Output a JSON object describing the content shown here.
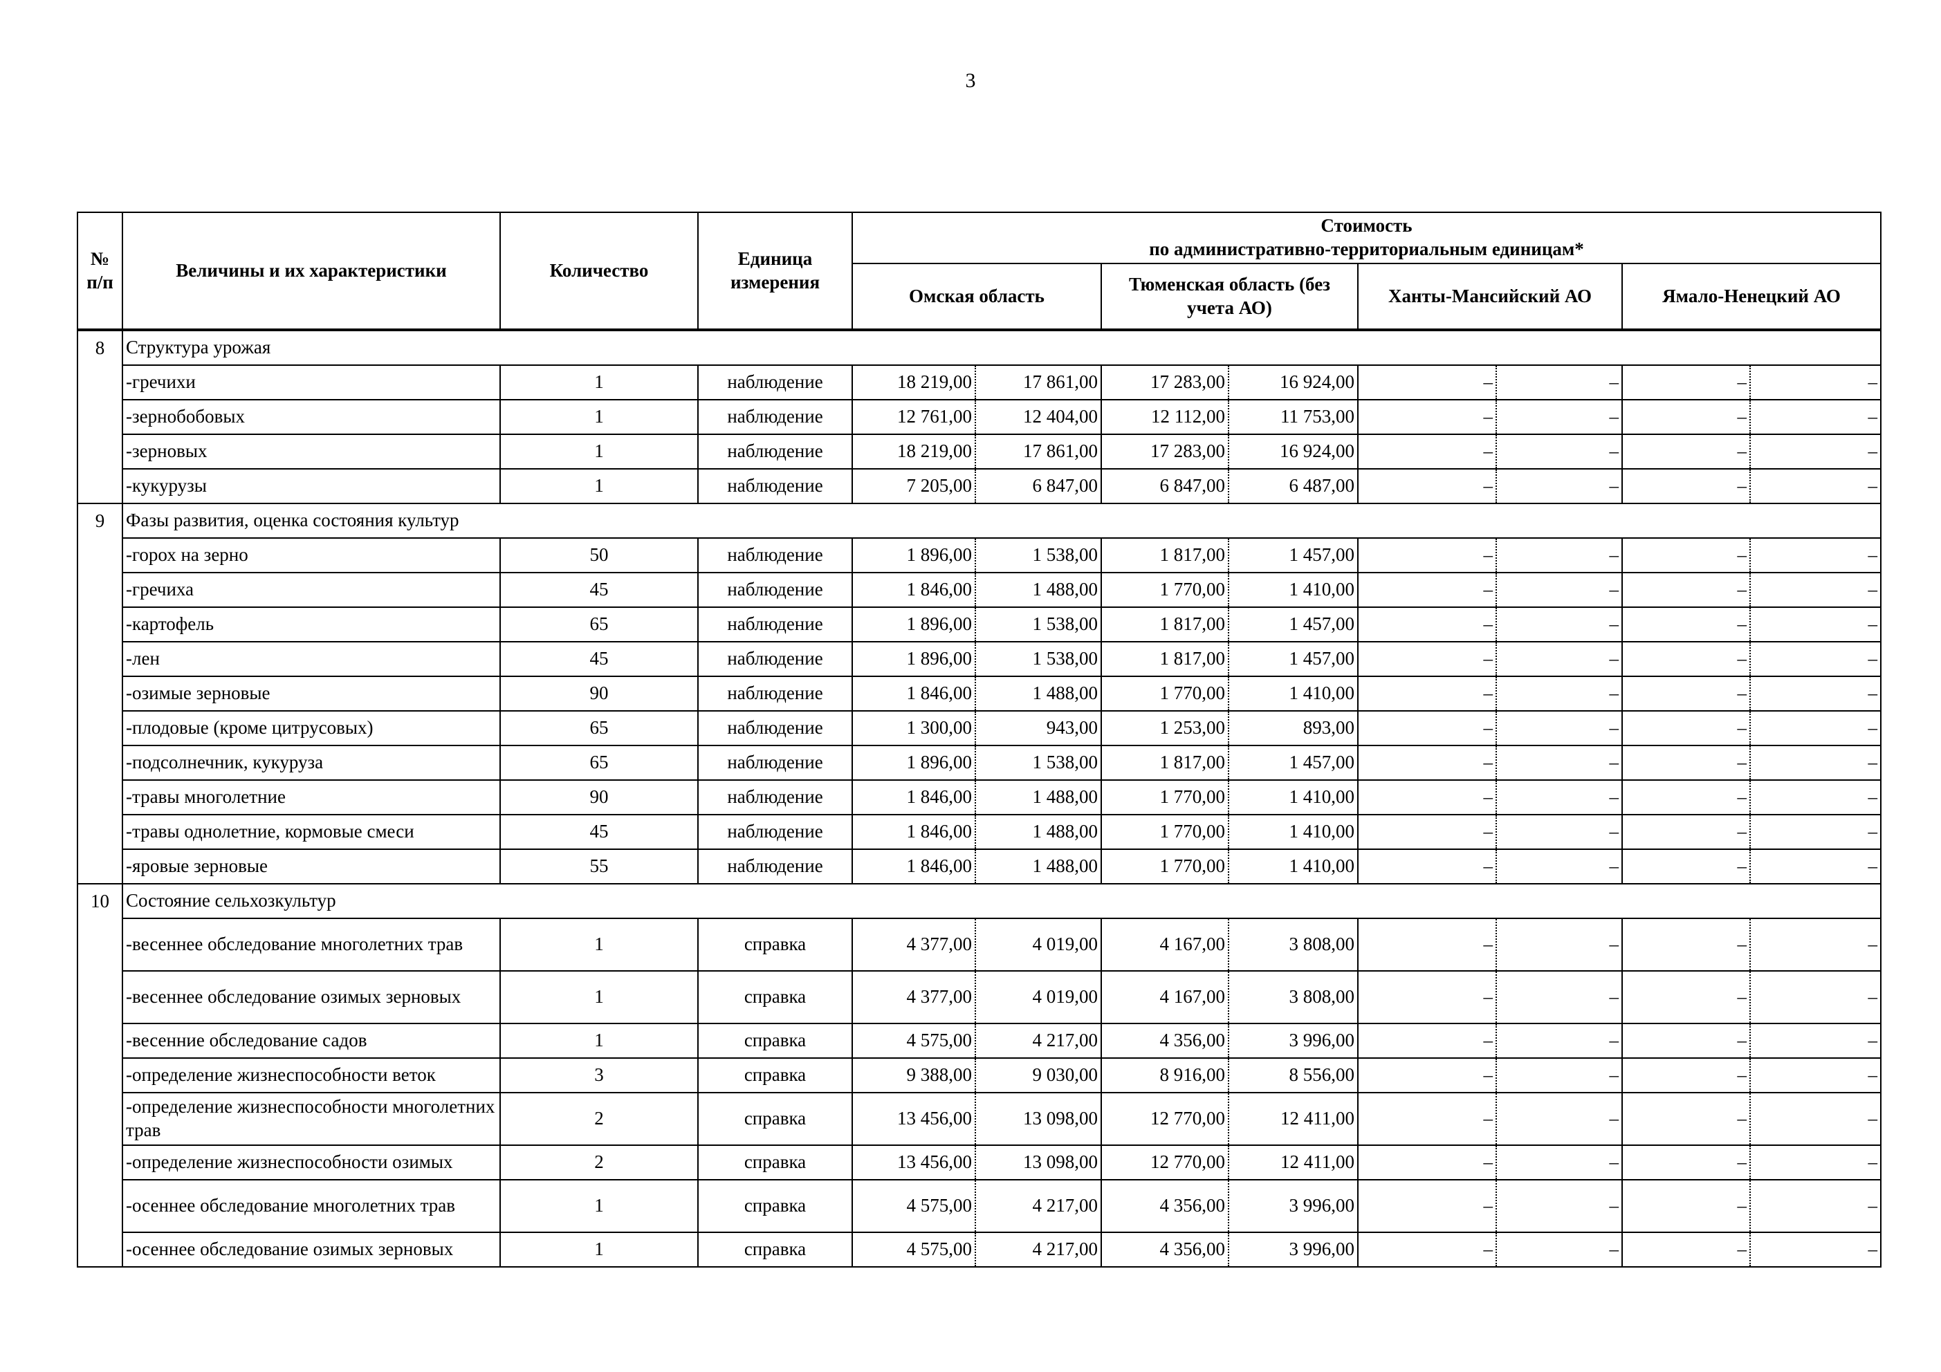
{
  "page_number": "3",
  "header": {
    "num": "№ п/п",
    "name": "Величины и их характеристики",
    "qty": "Количество",
    "unit": "Единица измерения",
    "cost": "Стоимость",
    "cost_sub": "по  административно-территориальным единицам*",
    "regions": [
      "Омская область",
      "Тюменская область (без учета АО)",
      "Ханты-Мансийский АО",
      "Ямало-Ненецкий АО"
    ]
  },
  "sections": [
    {
      "num": "8",
      "title": "Структура урожая",
      "rows": [
        {
          "name": "-гречихи",
          "qty": "1",
          "unit": "наблюдение",
          "vals": [
            "18 219,00",
            "17 861,00",
            "17 283,00",
            "16 924,00",
            "–",
            "–",
            "–",
            "–"
          ]
        },
        {
          "name": "-зернобобовых",
          "qty": "1",
          "unit": "наблюдение",
          "vals": [
            "12 761,00",
            "12 404,00",
            "12 112,00",
            "11 753,00",
            "–",
            "–",
            "–",
            "–"
          ]
        },
        {
          "name": "-зерновых",
          "qty": "1",
          "unit": "наблюдение",
          "vals": [
            "18 219,00",
            "17 861,00",
            "17 283,00",
            "16 924,00",
            "–",
            "–",
            "–",
            "–"
          ]
        },
        {
          "name": "-кукурузы",
          "qty": "1",
          "unit": "наблюдение",
          "vals": [
            "7 205,00",
            "6 847,00",
            "6 847,00",
            "6 487,00",
            "–",
            "–",
            "–",
            "–"
          ]
        }
      ]
    },
    {
      "num": "9",
      "title": "Фазы развития, оценка состояния культур",
      "rows": [
        {
          "name": "-горох на зерно",
          "qty": "50",
          "unit": "наблюдение",
          "vals": [
            "1 896,00",
            "1 538,00",
            "1 817,00",
            "1 457,00",
            "–",
            "–",
            "–",
            "–"
          ]
        },
        {
          "name": "-гречиха",
          "qty": "45",
          "unit": "наблюдение",
          "vals": [
            "1 846,00",
            "1 488,00",
            "1 770,00",
            "1 410,00",
            "–",
            "–",
            "–",
            "–"
          ]
        },
        {
          "name": "-картофель",
          "qty": "65",
          "unit": "наблюдение",
          "vals": [
            "1 896,00",
            "1 538,00",
            "1 817,00",
            "1 457,00",
            "–",
            "–",
            "–",
            "–"
          ]
        },
        {
          "name": "-лен",
          "qty": "45",
          "unit": "наблюдение",
          "vals": [
            "1 896,00",
            "1 538,00",
            "1 817,00",
            "1 457,00",
            "–",
            "–",
            "–",
            "–"
          ]
        },
        {
          "name": "-озимые зерновые",
          "qty": "90",
          "unit": "наблюдение",
          "vals": [
            "1 846,00",
            "1 488,00",
            "1 770,00",
            "1 410,00",
            "–",
            "–",
            "–",
            "–"
          ]
        },
        {
          "name": "-плодовые (кроме цитрусовых)",
          "qty": "65",
          "unit": "наблюдение",
          "vals": [
            "1 300,00",
            "943,00",
            "1 253,00",
            "893,00",
            "–",
            "–",
            "–",
            "–"
          ]
        },
        {
          "name": "-подсолнечник, кукуруза",
          "qty": "65",
          "unit": "наблюдение",
          "vals": [
            "1 896,00",
            "1 538,00",
            "1 817,00",
            "1 457,00",
            "–",
            "–",
            "–",
            "–"
          ]
        },
        {
          "name": "-травы многолетние",
          "qty": "90",
          "unit": "наблюдение",
          "vals": [
            "1 846,00",
            "1 488,00",
            "1 770,00",
            "1 410,00",
            "–",
            "–",
            "–",
            "–"
          ]
        },
        {
          "name": "-травы однолетние, кормовые смеси",
          "qty": "45",
          "unit": "наблюдение",
          "vals": [
            "1 846,00",
            "1 488,00",
            "1 770,00",
            "1 410,00",
            "–",
            "–",
            "–",
            "–"
          ]
        },
        {
          "name": "-яровые зерновые",
          "qty": "55",
          "unit": "наблюдение",
          "vals": [
            "1 846,00",
            "1 488,00",
            "1 770,00",
            "1 410,00",
            "–",
            "–",
            "–",
            "–"
          ]
        }
      ]
    },
    {
      "num": "10",
      "title": "Состояние сельхозкультур",
      "rows": [
        {
          "name": "-весеннее обследование многолетних трав",
          "qty": "1",
          "unit": "справка",
          "vals": [
            "4 377,00",
            "4 019,00",
            "4 167,00",
            "3 808,00",
            "–",
            "–",
            "–",
            "–"
          ]
        },
        {
          "name": "-весеннее обследование озимых зерновых",
          "qty": "1",
          "unit": "справка",
          "vals": [
            "4 377,00",
            "4 019,00",
            "4 167,00",
            "3 808,00",
            "–",
            "–",
            "–",
            "–"
          ]
        },
        {
          "name": "-весенние обследование садов",
          "qty": "1",
          "unit": "справка",
          "vals": [
            "4 575,00",
            "4 217,00",
            "4 356,00",
            "3 996,00",
            "–",
            "–",
            "–",
            "–"
          ]
        },
        {
          "name": "-определение жизнеспособности веток",
          "qty": "3",
          "unit": "справка",
          "vals": [
            "9 388,00",
            "9 030,00",
            "8 916,00",
            "8 556,00",
            "–",
            "–",
            "–",
            "–"
          ]
        },
        {
          "name": "-определение жизнеспособности многолетних трав",
          "qty": "2",
          "unit": "справка",
          "vals": [
            "13 456,00",
            "13 098,00",
            "12 770,00",
            "12 411,00",
            "–",
            "–",
            "–",
            "–"
          ]
        },
        {
          "name": "-определение жизнеспособности озимых",
          "qty": "2",
          "unit": "справка",
          "vals": [
            "13 456,00",
            "13 098,00",
            "12 770,00",
            "12 411,00",
            "–",
            "–",
            "–",
            "–"
          ]
        },
        {
          "name": "-осеннее обследование многолетних трав",
          "qty": "1",
          "unit": "справка",
          "vals": [
            "4 575,00",
            "4 217,00",
            "4 356,00",
            "3 996,00",
            "–",
            "–",
            "–",
            "–"
          ]
        },
        {
          "name": "-осеннее обследование озимых зерновых",
          "qty": "1",
          "unit": "справка",
          "vals": [
            "4 575,00",
            "4 217,00",
            "4 356,00",
            "3 996,00",
            "–",
            "–",
            "–",
            "–"
          ]
        }
      ]
    }
  ]
}
